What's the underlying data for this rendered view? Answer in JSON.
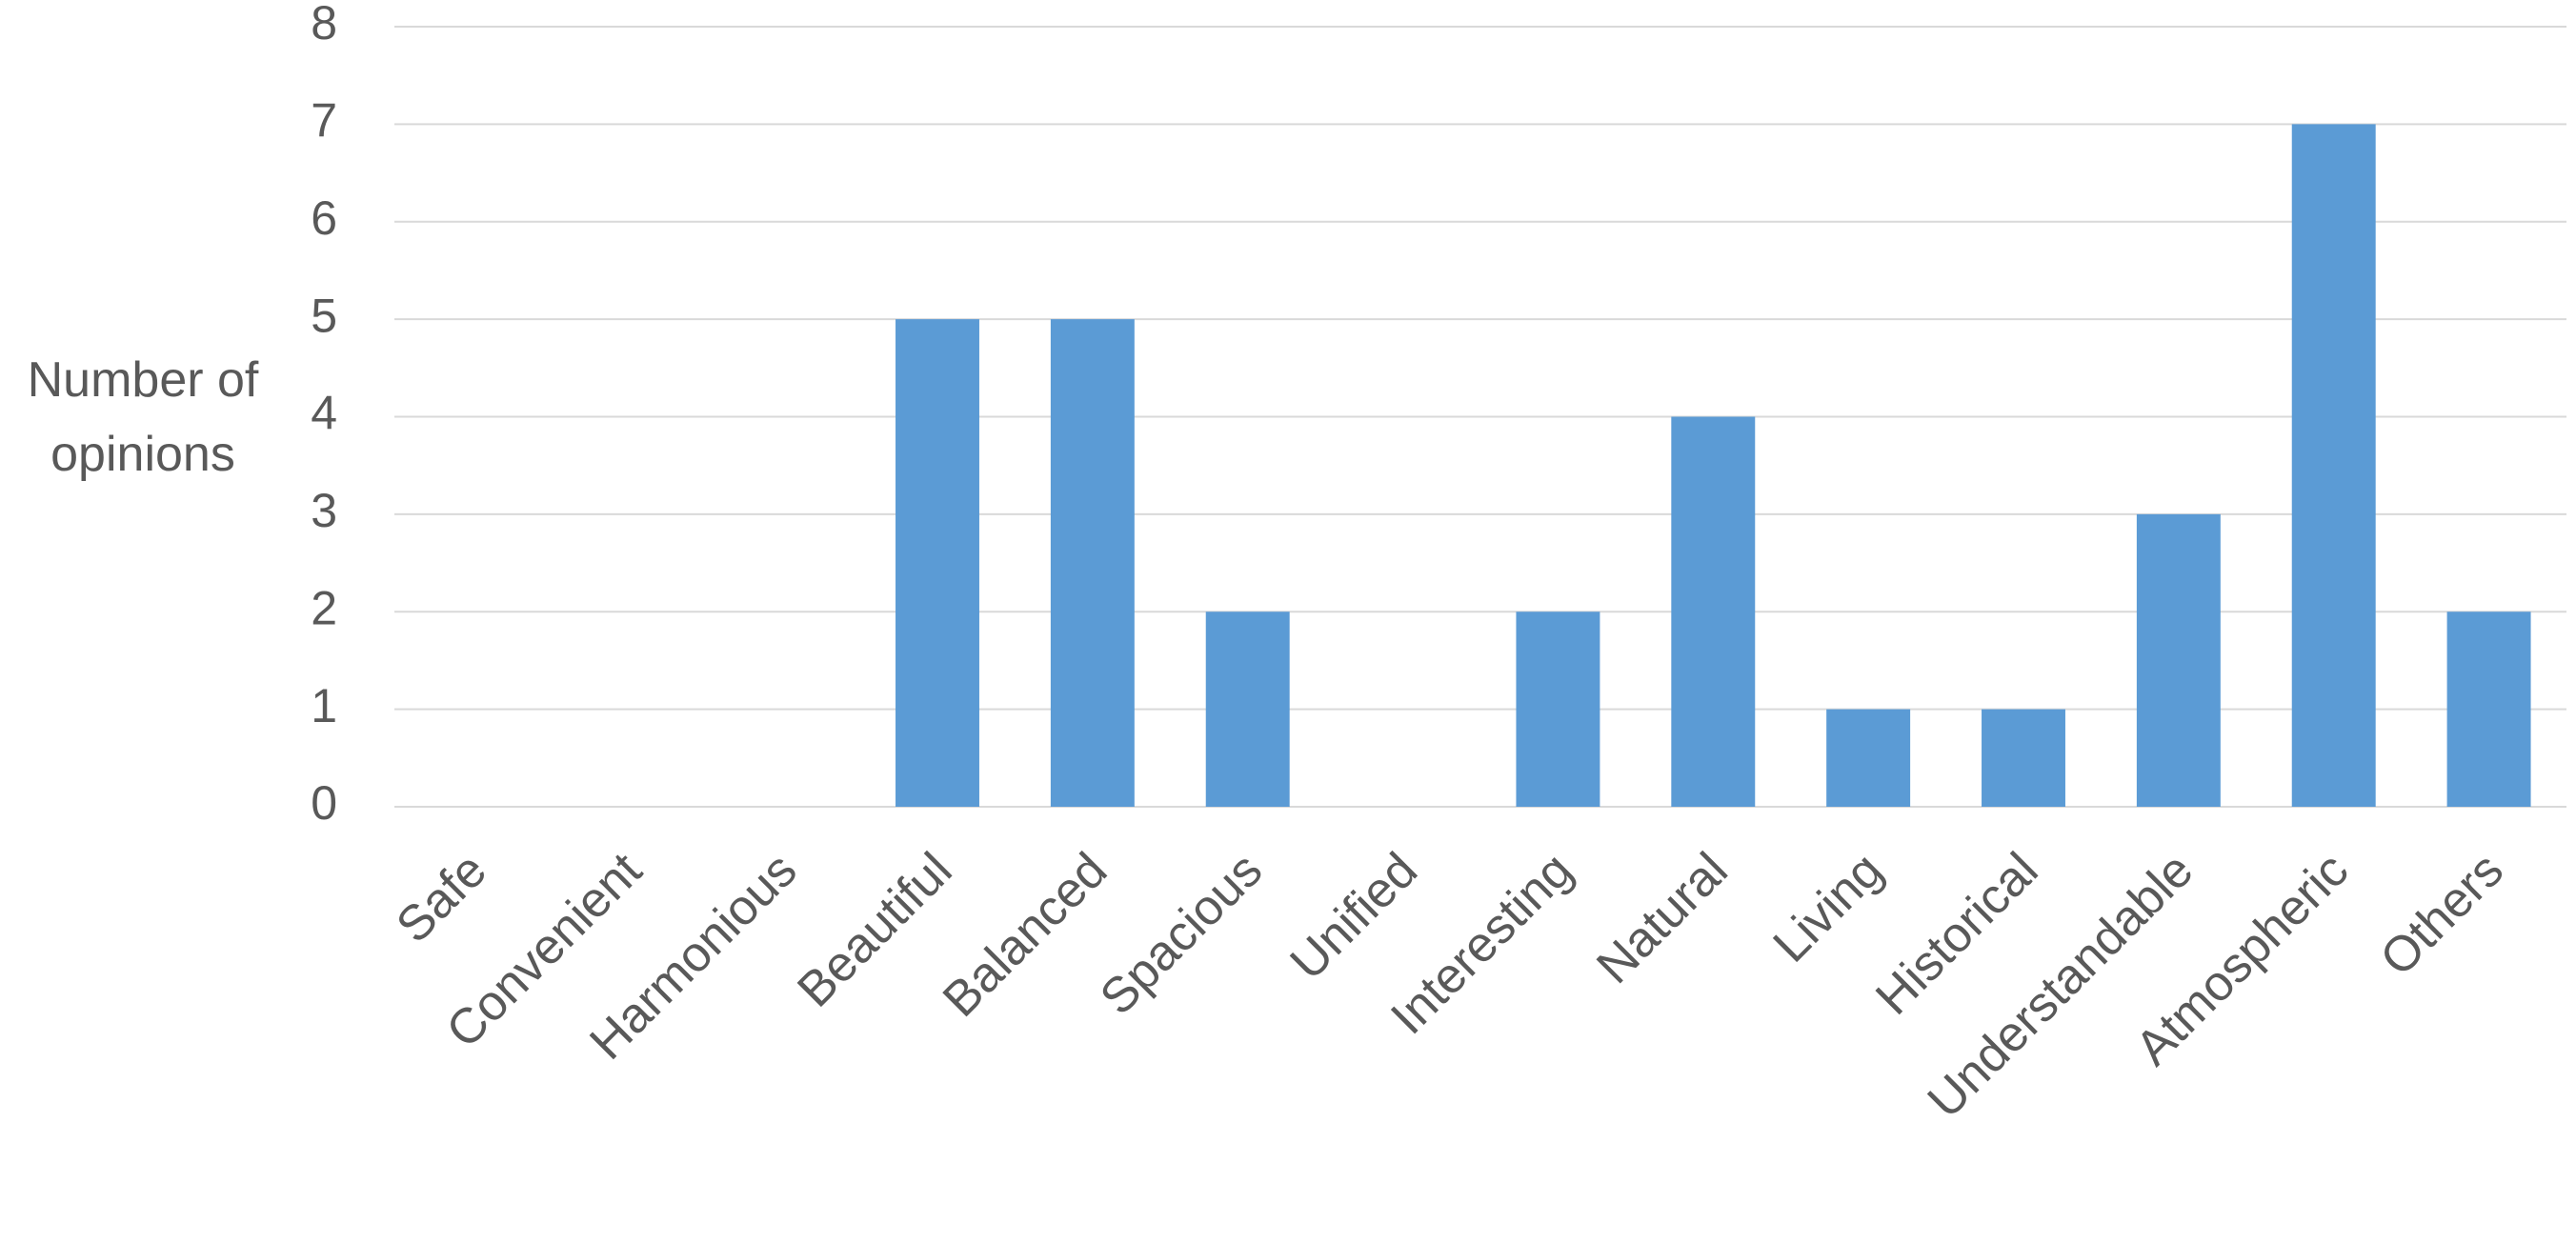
{
  "chart_data": {
    "type": "bar",
    "y_axis_label": "Number of opinions",
    "categories": [
      "Safe",
      "Convenient",
      "Harmonious",
      "Beautiful",
      "Balanced",
      "Spacious",
      "Unified",
      "Interesting",
      "Natural",
      "Living",
      "Historical",
      "Understandable",
      "Atmospheric",
      "Others"
    ],
    "values": [
      0,
      0,
      0,
      5,
      5,
      2,
      0,
      2,
      4,
      1,
      1,
      3,
      7,
      2
    ],
    "color": "#5b9bd5",
    "ylim": [
      0,
      8
    ],
    "yticks": [
      0,
      1,
      2,
      3,
      4,
      5,
      6,
      7,
      8
    ],
    "grid": true
  }
}
